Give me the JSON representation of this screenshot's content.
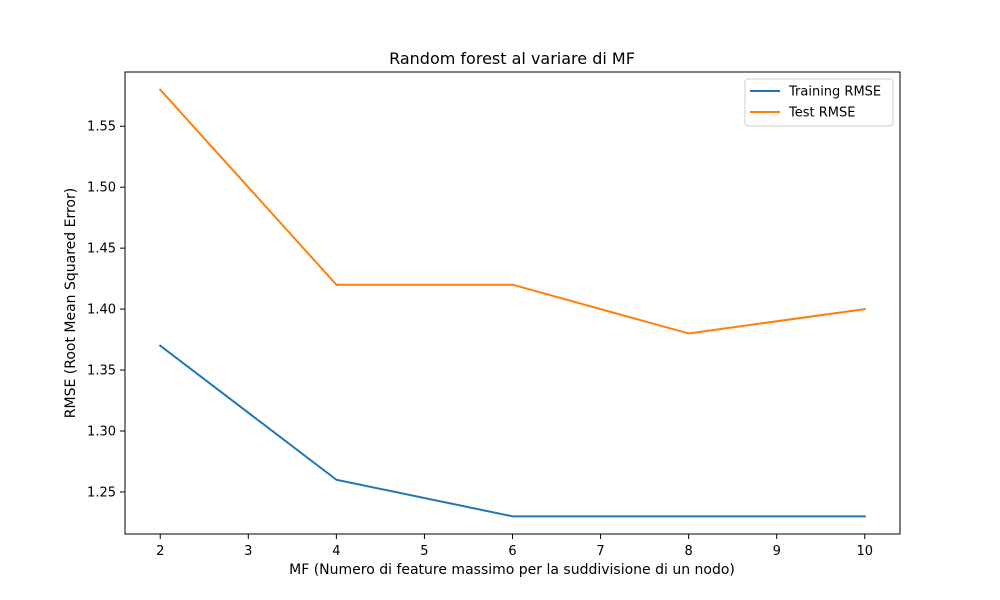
{
  "chart_data": {
    "type": "line",
    "title": "Random forest al variare di MF",
    "xlabel": "MF (Numero di feature massimo per la suddivisione di un nodo)",
    "ylabel": "RMSE (Root Mean Squared Error)",
    "x": [
      2,
      4,
      6,
      8,
      10
    ],
    "xlim": [
      1.6,
      10.4
    ],
    "ylim": [
      1.2155,
      1.5945
    ],
    "xticks": [
      2,
      3,
      4,
      5,
      6,
      7,
      8,
      9,
      10
    ],
    "yticks": [
      1.25,
      1.3,
      1.35,
      1.4,
      1.45,
      1.5,
      1.55
    ],
    "grid": false,
    "legend_position": "top-right",
    "series": [
      {
        "name": "Training RMSE",
        "values": [
          1.37,
          1.26,
          1.23,
          1.23,
          1.23
        ],
        "color": "#1f77b4"
      },
      {
        "name": "Test RMSE",
        "values": [
          1.58,
          1.42,
          1.42,
          1.38,
          1.4
        ],
        "color": "#ff7f0e"
      }
    ]
  }
}
